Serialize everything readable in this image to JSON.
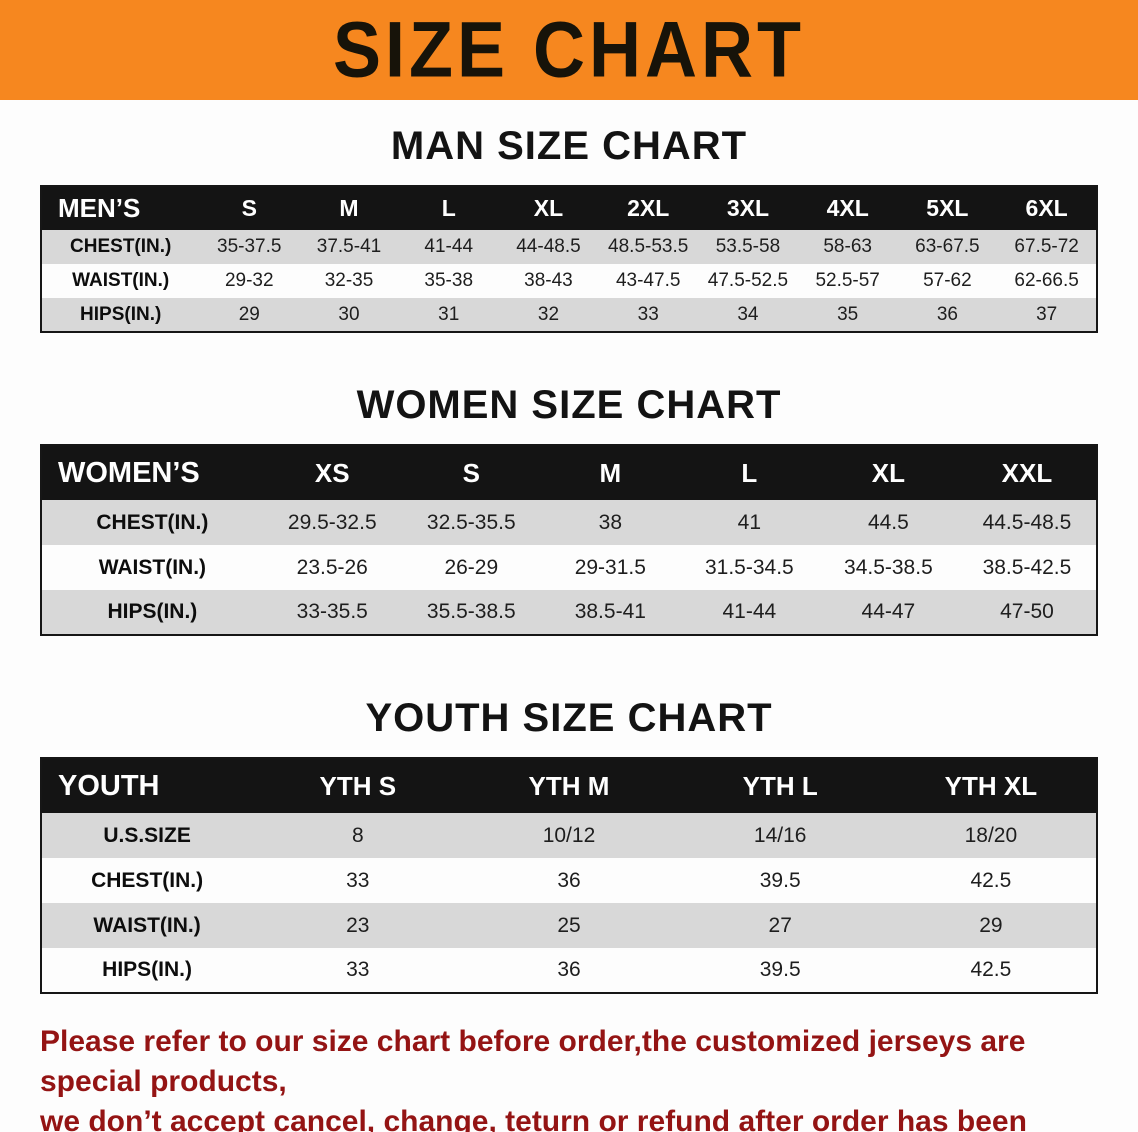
{
  "banner": {
    "title": "SIZE CHART",
    "bg_color": "#f6871f"
  },
  "colors": {
    "table_header_bg": "#141414",
    "stripe_row": "#d8d8d8",
    "note_text": "#941414"
  },
  "sections": [
    {
      "id": "men",
      "title": "MAN SIZE CHART",
      "header": {
        "label": "MEN’S",
        "sizes": [
          "S",
          "M",
          "L",
          "XL",
          "2XL",
          "3XL",
          "4XL",
          "5XL",
          "6XL"
        ]
      },
      "rows": [
        {
          "label": "CHEST(IN.)",
          "values": [
            "35-37.5",
            "37.5-41",
            "41-44",
            "44-48.5",
            "48.5-53.5",
            "53.5-58",
            "58-63",
            "63-67.5",
            "67.5-72"
          ]
        },
        {
          "label": "WAIST(IN.)",
          "values": [
            "29-32",
            "32-35",
            "35-38",
            "38-43",
            "43-47.5",
            "47.5-52.5",
            "52.5-57",
            "57-62",
            "62-66.5"
          ]
        },
        {
          "label": "HIPS(IN.)",
          "values": [
            "29",
            "30",
            "31",
            "32",
            "33",
            "34",
            "35",
            "36",
            "37"
          ]
        }
      ]
    },
    {
      "id": "women",
      "title": "WOMEN SIZE CHART",
      "header": {
        "label": "WOMEN’S",
        "sizes": [
          "XS",
          "S",
          "M",
          "L",
          "XL",
          "XXL"
        ]
      },
      "rows": [
        {
          "label": "CHEST(IN.)",
          "values": [
            "29.5-32.5",
            "32.5-35.5",
            "38",
            "41",
            "44.5",
            "44.5-48.5"
          ]
        },
        {
          "label": "WAIST(IN.)",
          "values": [
            "23.5-26",
            "26-29",
            "29-31.5",
            "31.5-34.5",
            "34.5-38.5",
            "38.5-42.5"
          ]
        },
        {
          "label": "HIPS(IN.)",
          "values": [
            "33-35.5",
            "35.5-38.5",
            "38.5-41",
            "41-44",
            "44-47",
            "47-50"
          ]
        }
      ]
    },
    {
      "id": "youth",
      "title": "YOUTH SIZE CHART",
      "header": {
        "label": "YOUTH",
        "sizes": [
          "YTH S",
          "YTH M",
          "YTH L",
          "YTH XL"
        ]
      },
      "rows": [
        {
          "label": "U.S.SIZE",
          "values": [
            "8",
            "10/12",
            "14/16",
            "18/20"
          ]
        },
        {
          "label": "CHEST(IN.)",
          "values": [
            "33",
            "36",
            "39.5",
            "42.5"
          ]
        },
        {
          "label": "WAIST(IN.)",
          "values": [
            "23",
            "25",
            "27",
            "29"
          ]
        },
        {
          "label": "HIPS(IN.)",
          "values": [
            "33",
            "36",
            "39.5",
            "42.5"
          ]
        }
      ]
    }
  ],
  "footer": {
    "line1": "Please refer to our size chart before order,the customized jerseys are special products,",
    "line2": "we don’t accept cancel, change, teturn or refund after order has been placed!"
  }
}
